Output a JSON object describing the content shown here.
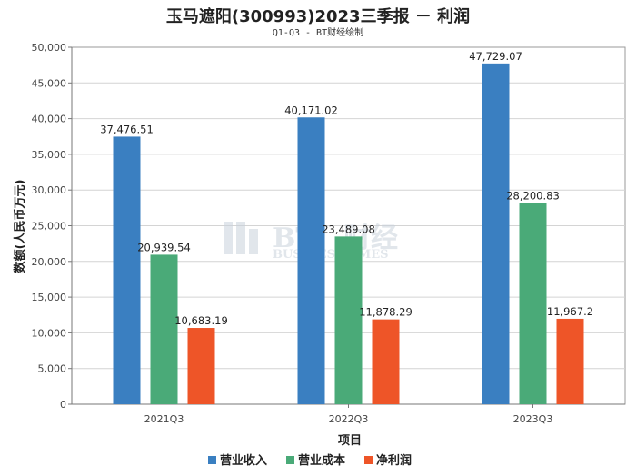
{
  "chart_data": {
    "type": "bar",
    "title": "玉马遮阳(300993)2023三季报 － 利润",
    "subtitle": "Q1-Q3 - BT财经绘制",
    "xlabel": "项目",
    "ylabel": "数额(人民币万元)",
    "ylim": [
      0,
      50000
    ],
    "ytick_step": 5000,
    "categories": [
      "2021Q3",
      "2022Q3",
      "2023Q3"
    ],
    "series": [
      {
        "name": "营业收入",
        "color": "#3a7fc1",
        "values": [
          37476.51,
          40171.02,
          47729.07
        ],
        "labels": [
          "37,476.51",
          "40,171.02",
          "47,729.07"
        ]
      },
      {
        "name": "营业成本",
        "color": "#4aaa78",
        "values": [
          20939.54,
          23489.08,
          28200.83
        ],
        "labels": [
          "20,939.54",
          "23,489.08",
          "28,200.83"
        ]
      },
      {
        "name": "净利润",
        "color": "#ee5528",
        "values": [
          10683.19,
          11878.29,
          11967.2
        ],
        "labels": [
          "10,683.19",
          "11,878.29",
          "11,967.2"
        ]
      }
    ],
    "grid": true,
    "legend_position": "bottom-center"
  },
  "watermark": {
    "brand": "BT",
    "cn": "财经",
    "en": "BUSINESSTIMES"
  }
}
